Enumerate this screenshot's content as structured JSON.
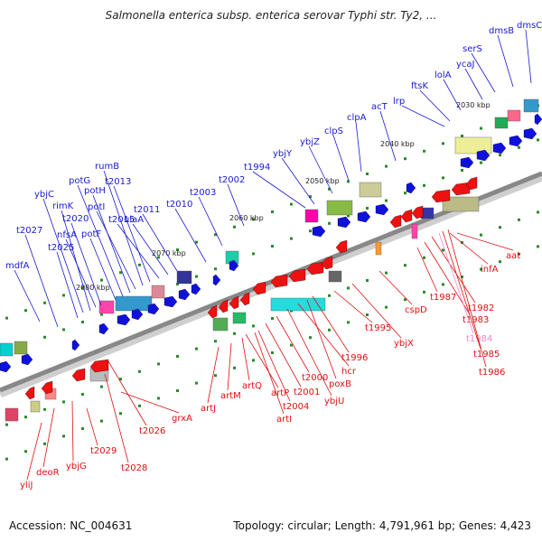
{
  "title": "Salmonella enterica subsp. enterica serovar Typhi str. Ty2, ...",
  "footer": {
    "accession": "Accession: NC_004631",
    "summary": "Topology: circular; Length: 4,791,961 bp; Genes: 4,423"
  },
  "colors": {
    "forward_label": "#1a1ad0",
    "reverse_label": "#dd1111",
    "forward_arrow": "#1010dd",
    "reverse_arrow": "#ee1111",
    "backbone": "#888888",
    "highlight_label": "#ee88cc"
  },
  "kbp_markers": [
    "2030 kbp",
    "2040 kbp",
    "2050 kbp",
    "2060 kbp",
    "2070 kbp",
    "2080 kbp"
  ],
  "forward_genes": [
    "mdfA",
    "t2027",
    "t2025",
    "ybjC",
    "rimK",
    "nfsA",
    "t2020",
    "potF",
    "potG",
    "potH",
    "potI",
    "rumB",
    "t2013",
    "t2015",
    "ulaA",
    "t2011",
    "t2010",
    "t2003",
    "t2002",
    "t1994",
    "ybjY",
    "ybjZ",
    "clpS",
    "clpA",
    "acT",
    "lrp",
    "ftsK",
    "lolA",
    "ycaJ",
    "serS",
    "dmsB",
    "dmsC"
  ],
  "reverse_genes": [
    "yliJ",
    "deoR",
    "ybjG",
    "t2029",
    "t2028",
    "t2026",
    "grxA",
    "artJ",
    "artM",
    "artQ",
    "artP",
    "t2004",
    "artI",
    "t2001",
    "t2000",
    "ybjU",
    "hcr",
    "poxB",
    "t1996",
    "ybjX",
    "t1995",
    "cspD",
    "t1987",
    "t1983",
    "t1982",
    "t1984",
    "t1985",
    "t1986",
    "infA",
    "aat"
  ]
}
